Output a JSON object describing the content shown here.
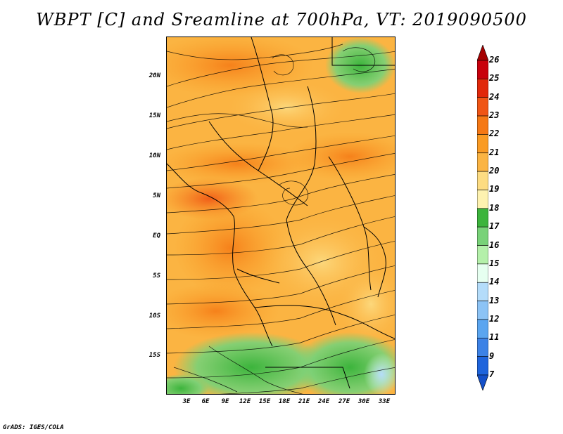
{
  "title": "WBPT [C] and Sreamline at 700hPa, VT: 2019090500",
  "footer": "GrADS: IGES/COLA",
  "map": {
    "lat_labels": [
      "20N",
      "15N",
      "10N",
      "5N",
      "EQ",
      "5S",
      "10S",
      "15S"
    ],
    "lon_labels": [
      "3E",
      "6E",
      "9E",
      "12E",
      "15E",
      "18E",
      "21E",
      "24E",
      "27E",
      "30E",
      "33E"
    ],
    "field": "wet-bulb potential temperature",
    "overlay": "streamlines"
  },
  "colorbar": {
    "labels": [
      "26",
      "25",
      "24",
      "23",
      "22",
      "21",
      "20",
      "19",
      "18",
      "17",
      "16",
      "15",
      "14",
      "13",
      "12",
      "11",
      "9",
      "7"
    ],
    "colors": [
      "#a50000",
      "#c8000c",
      "#e1280a",
      "#f05514",
      "#f57814",
      "#fa9b23",
      "#fbb442",
      "#fddc82",
      "#fef2b0",
      "#3cb43c",
      "#78d278",
      "#b4f0aa",
      "#e6fff0",
      "#b4dcfa",
      "#8cc3f5",
      "#5aa5f0",
      "#3c82e6",
      "#1e64dc",
      "#1450c8"
    ]
  }
}
